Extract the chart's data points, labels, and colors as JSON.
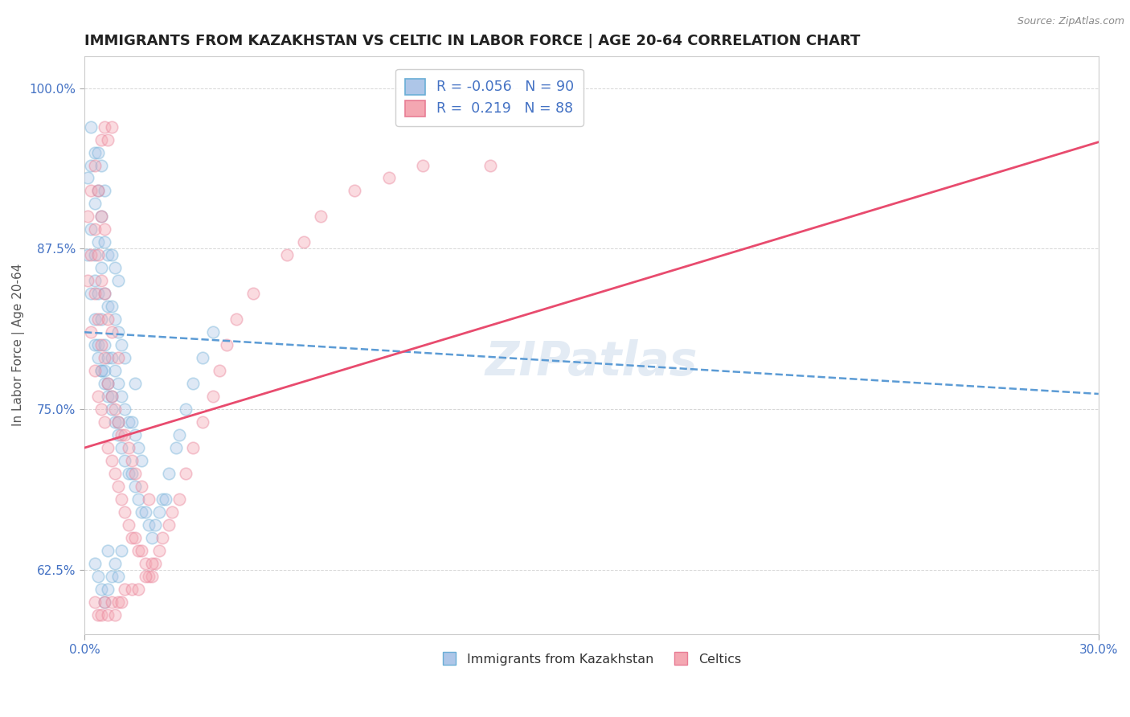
{
  "title": "IMMIGRANTS FROM KAZAKHSTAN VS CELTIC IN LABOR FORCE | AGE 20-64 CORRELATION CHART",
  "source": "Source: ZipAtlas.com",
  "xlabel": "",
  "ylabel": "In Labor Force | Age 20-64",
  "x_min": 0.0,
  "x_max": 0.3,
  "y_min": 0.575,
  "y_max": 1.025,
  "x_ticks": [
    0.0,
    0.3
  ],
  "x_tick_labels": [
    "0.0%",
    "30.0%"
  ],
  "y_ticks": [
    0.625,
    0.75,
    0.875,
    1.0
  ],
  "y_tick_labels": [
    "62.5%",
    "75.0%",
    "87.5%",
    "100.0%"
  ],
  "legend_entries": [
    {
      "label": "Immigrants from Kazakhstan",
      "color": "#aec6e8",
      "edge_color": "#6aaed6",
      "R": "-0.056",
      "N": "90"
    },
    {
      "label": "Celtics",
      "color": "#f4a7b2",
      "edge_color": "#e87d95",
      "R": "0.219",
      "N": "88"
    }
  ],
  "blue_scatter_x": [
    0.001,
    0.001,
    0.002,
    0.002,
    0.002,
    0.002,
    0.003,
    0.003,
    0.003,
    0.003,
    0.003,
    0.003,
    0.004,
    0.004,
    0.004,
    0.004,
    0.004,
    0.004,
    0.005,
    0.005,
    0.005,
    0.005,
    0.005,
    0.005,
    0.006,
    0.006,
    0.006,
    0.006,
    0.006,
    0.006,
    0.007,
    0.007,
    0.007,
    0.007,
    0.007,
    0.008,
    0.008,
    0.008,
    0.008,
    0.008,
    0.009,
    0.009,
    0.009,
    0.009,
    0.01,
    0.01,
    0.01,
    0.01,
    0.01,
    0.011,
    0.011,
    0.011,
    0.012,
    0.012,
    0.012,
    0.013,
    0.013,
    0.014,
    0.014,
    0.015,
    0.015,
    0.015,
    0.016,
    0.016,
    0.017,
    0.017,
    0.018,
    0.019,
    0.02,
    0.021,
    0.022,
    0.023,
    0.024,
    0.025,
    0.027,
    0.028,
    0.03,
    0.032,
    0.035,
    0.038,
    0.003,
    0.004,
    0.005,
    0.006,
    0.007,
    0.007,
    0.008,
    0.009,
    0.01,
    0.011
  ],
  "blue_scatter_y": [
    0.87,
    0.93,
    0.84,
    0.89,
    0.94,
    0.97,
    0.82,
    0.87,
    0.91,
    0.95,
    0.8,
    0.85,
    0.8,
    0.84,
    0.88,
    0.92,
    0.95,
    0.79,
    0.78,
    0.82,
    0.86,
    0.9,
    0.94,
    0.78,
    0.77,
    0.8,
    0.84,
    0.88,
    0.92,
    0.78,
    0.76,
    0.79,
    0.83,
    0.87,
    0.77,
    0.75,
    0.79,
    0.83,
    0.87,
    0.76,
    0.74,
    0.78,
    0.82,
    0.86,
    0.73,
    0.77,
    0.81,
    0.85,
    0.74,
    0.72,
    0.76,
    0.8,
    0.71,
    0.75,
    0.79,
    0.7,
    0.74,
    0.7,
    0.74,
    0.69,
    0.73,
    0.77,
    0.68,
    0.72,
    0.67,
    0.71,
    0.67,
    0.66,
    0.65,
    0.66,
    0.67,
    0.68,
    0.68,
    0.7,
    0.72,
    0.73,
    0.75,
    0.77,
    0.79,
    0.81,
    0.63,
    0.62,
    0.61,
    0.6,
    0.61,
    0.64,
    0.62,
    0.63,
    0.62,
    0.64
  ],
  "pink_scatter_x": [
    0.001,
    0.001,
    0.002,
    0.002,
    0.002,
    0.003,
    0.003,
    0.003,
    0.003,
    0.004,
    0.004,
    0.004,
    0.004,
    0.005,
    0.005,
    0.005,
    0.005,
    0.006,
    0.006,
    0.006,
    0.006,
    0.007,
    0.007,
    0.007,
    0.008,
    0.008,
    0.008,
    0.009,
    0.009,
    0.01,
    0.01,
    0.01,
    0.011,
    0.011,
    0.012,
    0.012,
    0.013,
    0.013,
    0.014,
    0.014,
    0.015,
    0.015,
    0.016,
    0.017,
    0.017,
    0.018,
    0.019,
    0.019,
    0.02,
    0.021,
    0.022,
    0.023,
    0.025,
    0.026,
    0.028,
    0.03,
    0.032,
    0.035,
    0.038,
    0.04,
    0.042,
    0.045,
    0.05,
    0.06,
    0.065,
    0.07,
    0.08,
    0.09,
    0.1,
    0.12,
    0.003,
    0.004,
    0.005,
    0.006,
    0.007,
    0.008,
    0.009,
    0.01,
    0.011,
    0.012,
    0.014,
    0.016,
    0.018,
    0.02,
    0.005,
    0.006,
    0.007,
    0.008
  ],
  "pink_scatter_y": [
    0.85,
    0.9,
    0.81,
    0.87,
    0.92,
    0.78,
    0.84,
    0.89,
    0.94,
    0.76,
    0.82,
    0.87,
    0.92,
    0.75,
    0.8,
    0.85,
    0.9,
    0.74,
    0.79,
    0.84,
    0.89,
    0.72,
    0.77,
    0.82,
    0.71,
    0.76,
    0.81,
    0.7,
    0.75,
    0.69,
    0.74,
    0.79,
    0.68,
    0.73,
    0.67,
    0.73,
    0.66,
    0.72,
    0.65,
    0.71,
    0.65,
    0.7,
    0.64,
    0.64,
    0.69,
    0.63,
    0.62,
    0.68,
    0.62,
    0.63,
    0.64,
    0.65,
    0.66,
    0.67,
    0.68,
    0.7,
    0.72,
    0.74,
    0.76,
    0.78,
    0.8,
    0.82,
    0.84,
    0.87,
    0.88,
    0.9,
    0.92,
    0.93,
    0.94,
    0.94,
    0.6,
    0.59,
    0.59,
    0.6,
    0.59,
    0.6,
    0.59,
    0.6,
    0.6,
    0.61,
    0.61,
    0.61,
    0.62,
    0.63,
    0.96,
    0.97,
    0.96,
    0.97
  ],
  "blue_line_x": [
    0.0,
    0.3
  ],
  "blue_line_y": [
    0.81,
    0.762
  ],
  "pink_line_x": [
    0.0,
    0.3
  ],
  "pink_line_y": [
    0.72,
    0.958
  ],
  "watermark": "ZIPatlas",
  "scatter_size": 110,
  "scatter_alpha": 0.4,
  "scatter_linewidth": 1.2,
  "title_fontsize": 13,
  "axis_label_fontsize": 11,
  "tick_fontsize": 11,
  "legend_fontsize": 12.5
}
